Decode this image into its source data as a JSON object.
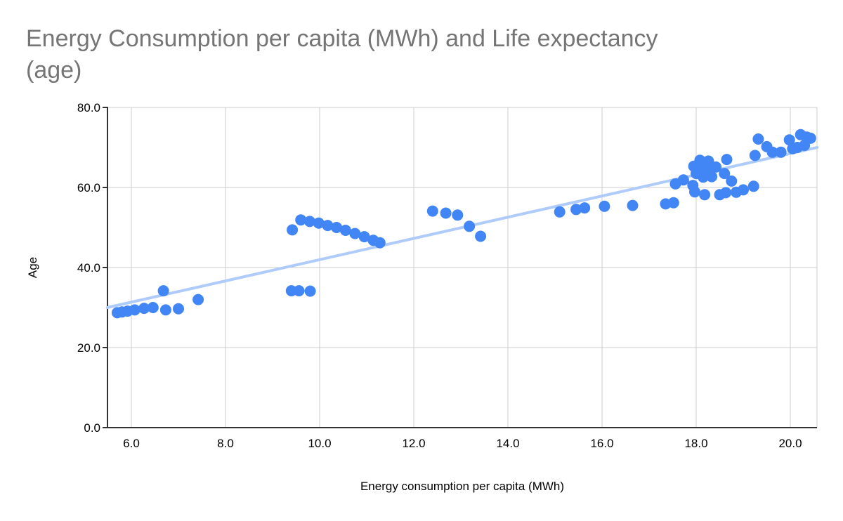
{
  "chart_data": {
    "type": "scatter",
    "title": "Energy Consumption per capita (MWh) and Life expectancy (age)",
    "title_lines": [
      "Energy Consumption per capita (MWh) and Life expectancy",
      "(age)"
    ],
    "xlabel": "Energy consumption per capita (MWh)",
    "ylabel": "Age",
    "xlim": [
      5.49,
      20.57
    ],
    "ylim": [
      0.0,
      80.0
    ],
    "grid": true,
    "legend_position": "none",
    "x_ticks": [
      6,
      8,
      10,
      12,
      14,
      16,
      18,
      20
    ],
    "x_tick_labels": [
      "6.0",
      "8.0",
      "10.0",
      "12.0",
      "14.0",
      "16.0",
      "18.0",
      "20.0"
    ],
    "y_ticks": [
      0,
      20,
      40,
      60,
      80
    ],
    "y_tick_labels": [
      "0.0",
      "20.0",
      "40.0",
      "60.0",
      "80.0"
    ],
    "series_name": "Life expectancy (age)",
    "trendline": {
      "x1": 5.49,
      "y1": 30.0,
      "x2": 20.57,
      "y2": 70.0
    },
    "points": [
      [
        5.7,
        28.7
      ],
      [
        5.8,
        28.9
      ],
      [
        5.92,
        29.1
      ],
      [
        6.07,
        29.4
      ],
      [
        6.27,
        29.8
      ],
      [
        6.46,
        30.0
      ],
      [
        6.68,
        34.2
      ],
      [
        6.73,
        29.4
      ],
      [
        7.0,
        29.7
      ],
      [
        7.42,
        32.0
      ],
      [
        9.4,
        34.2
      ],
      [
        9.56,
        34.2
      ],
      [
        9.8,
        34.1
      ],
      [
        9.42,
        49.4
      ],
      [
        9.6,
        51.9
      ],
      [
        9.79,
        51.5
      ],
      [
        9.98,
        51.1
      ],
      [
        10.17,
        50.5
      ],
      [
        10.36,
        50.0
      ],
      [
        10.55,
        49.3
      ],
      [
        10.75,
        48.5
      ],
      [
        10.95,
        47.7
      ],
      [
        11.14,
        46.8
      ],
      [
        11.28,
        46.2
      ],
      [
        12.4,
        54.1
      ],
      [
        12.68,
        53.6
      ],
      [
        12.93,
        53.1
      ],
      [
        13.18,
        50.3
      ],
      [
        13.42,
        47.8
      ],
      [
        15.1,
        53.9
      ],
      [
        15.45,
        54.5
      ],
      [
        15.63,
        54.9
      ],
      [
        16.05,
        55.3
      ],
      [
        16.65,
        55.5
      ],
      [
        17.35,
        55.9
      ],
      [
        17.52,
        56.2
      ],
      [
        17.56,
        60.9
      ],
      [
        17.73,
        61.9
      ],
      [
        17.93,
        60.5
      ],
      [
        17.97,
        58.9
      ],
      [
        18.18,
        58.2
      ],
      [
        18.5,
        58.2
      ],
      [
        18.63,
        58.7
      ],
      [
        18.85,
        58.8
      ],
      [
        19.0,
        59.4
      ],
      [
        19.22,
        60.3
      ],
      [
        18.75,
        61.6
      ],
      [
        18.6,
        63.5
      ],
      [
        18.42,
        65.1
      ],
      [
        18.33,
        62.7
      ],
      [
        18.15,
        62.6
      ],
      [
        18.0,
        63.5
      ],
      [
        17.95,
        65.3
      ],
      [
        18.08,
        66.8
      ],
      [
        18.12,
        64.7
      ],
      [
        18.26,
        66.6
      ],
      [
        18.28,
        64.4
      ],
      [
        18.65,
        67.0
      ],
      [
        19.25,
        68.0
      ],
      [
        19.32,
        72.1
      ],
      [
        19.5,
        70.2
      ],
      [
        19.62,
        68.8
      ],
      [
        19.8,
        68.8
      ],
      [
        19.98,
        71.9
      ],
      [
        20.05,
        69.7
      ],
      [
        20.15,
        70.0
      ],
      [
        20.22,
        73.2
      ],
      [
        20.3,
        70.5
      ],
      [
        20.35,
        72.6
      ],
      [
        20.43,
        72.3
      ]
    ]
  },
  "colors": {
    "point": "#4285F4",
    "trendline": "#AECBFA",
    "grid": "#cccccc",
    "axis": "#333333",
    "title_text": "#757575",
    "tick_text": "#000000",
    "background": "#ffffff"
  }
}
